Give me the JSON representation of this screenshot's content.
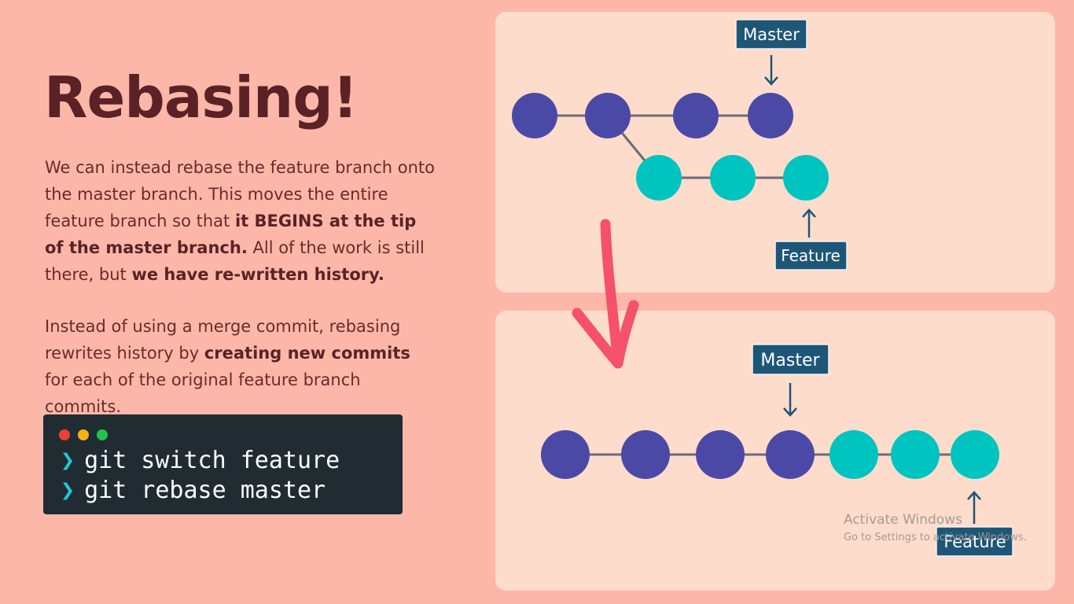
{
  "title": "Rebasing!",
  "paragraph1": {
    "t1": "We can instead rebase the feature branch onto the master branch.  This moves the entire feature branch so that ",
    "b1": "it BEGINS at the tip of the master branch.",
    "t2": "  All of the work is still there, but ",
    "b2": "we have re-written history."
  },
  "paragraph2": {
    "t1": "Instead of using a merge commit, rebasing rewrites history by ",
    "b1": "creating new commits",
    "t2": " for each of the original feature branch commits."
  },
  "terminal": {
    "prompt": "❯",
    "commands": [
      "git switch feature",
      "git rebase master"
    ]
  },
  "diagram_before": {
    "master_label": "Master",
    "feature_label": "Feature",
    "master_commits": 4,
    "feature_commits": 3
  },
  "diagram_after": {
    "master_label": "Master",
    "feature_label": "Feature",
    "master_commits": 4,
    "feature_commits": 3
  },
  "colors": {
    "background": "#fcb7a8",
    "panel": "#fedccb",
    "master_commit": "#4a4aa6",
    "feature_commit": "#00c4c0",
    "label_bg": "#1e5677",
    "arrow": "#f5516b",
    "title": "#5a2226"
  },
  "watermark": {
    "line1": "Activate Windows",
    "line2": "Go to Settings to activate Windows."
  }
}
